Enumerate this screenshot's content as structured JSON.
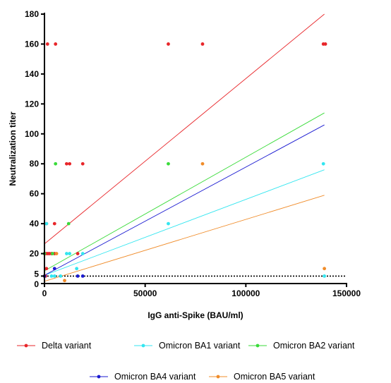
{
  "chart_data": {
    "type": "scatter",
    "xlabel": "IgG anti-Spike (BAU/ml)",
    "ylabel": "Neutralization titer",
    "xlim": [
      0,
      150000
    ],
    "ylim": [
      0,
      180
    ],
    "x_ticks": [
      0,
      50000,
      100000,
      150000
    ],
    "x_tick_labels": [
      "0",
      "50000",
      "100000",
      "150000"
    ],
    "y_ticks": [
      0,
      5,
      20,
      40,
      60,
      80,
      100,
      120,
      140,
      160,
      180
    ],
    "y_tick_labels": [
      "0",
      "5",
      "20",
      "40",
      "60",
      "80",
      "100",
      "120",
      "140",
      "160",
      "180"
    ],
    "threshold_line": {
      "y": 5,
      "style": "dotted"
    },
    "legend_placement": "bottom",
    "series": [
      {
        "name": "Delta variant",
        "color": "#e8262a",
        "points": [
          [
            1500,
            160
          ],
          [
            5500,
            160
          ],
          [
            61500,
            160
          ],
          [
            78500,
            160
          ],
          [
            138500,
            160
          ],
          [
            139500,
            160
          ],
          [
            11000,
            80
          ],
          [
            12500,
            80
          ],
          [
            19000,
            80
          ],
          [
            1000,
            40
          ],
          [
            5000,
            40
          ],
          [
            0,
            20
          ],
          [
            800,
            20
          ],
          [
            1600,
            20
          ],
          [
            2400,
            20
          ],
          [
            3500,
            20
          ],
          [
            5000,
            20
          ],
          [
            16500,
            20
          ],
          [
            1000,
            10
          ],
          [
            0,
            5
          ],
          [
            500,
            5
          ]
        ],
        "fit": [
          [
            0,
            26.5
          ],
          [
            139000,
            180
          ]
        ]
      },
      {
        "name": "Omicron BA1 variant",
        "color": "#33e6f0",
        "points": [
          [
            1000,
            40
          ],
          [
            11000,
            20
          ],
          [
            12500,
            20
          ],
          [
            19000,
            20
          ],
          [
            16000,
            10
          ],
          [
            61500,
            40
          ],
          [
            138500,
            80
          ],
          [
            3500,
            5
          ],
          [
            5000,
            5
          ],
          [
            8000,
            5
          ],
          [
            139000,
            5
          ]
        ],
        "fit": [
          [
            0,
            5.5
          ],
          [
            139000,
            76
          ]
        ]
      },
      {
        "name": "Omicron BA2 variant",
        "color": "#3adb3a",
        "points": [
          [
            5500,
            80
          ],
          [
            61500,
            80
          ],
          [
            12000,
            40
          ],
          [
            4000,
            20
          ],
          [
            0,
            20
          ]
        ],
        "fit": [
          [
            0,
            8.5
          ],
          [
            139000,
            114
          ]
        ]
      },
      {
        "name": "Omicron BA4 variant",
        "color": "#1a1ad1",
        "points": [
          [
            5000,
            10
          ],
          [
            16500,
            5
          ],
          [
            19000,
            5
          ],
          [
            0,
            5
          ]
        ],
        "fit": [
          [
            0,
            5.5
          ],
          [
            139000,
            106
          ]
        ]
      },
      {
        "name": "Omicron BA5 variant",
        "color": "#f08c2a",
        "points": [
          [
            78500,
            80
          ],
          [
            6000,
            20
          ],
          [
            139000,
            10
          ],
          [
            10000,
            2
          ]
        ],
        "fit": [
          [
            0,
            1.5
          ],
          [
            139000,
            59
          ]
        ]
      }
    ]
  }
}
